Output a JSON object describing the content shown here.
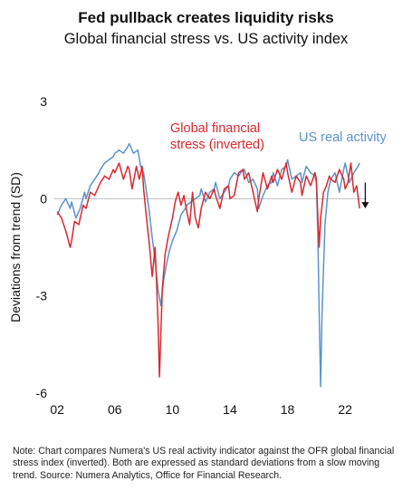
{
  "title": "Fed pullback creates liquidity risks",
  "subtitle": "Global financial stress vs. US activity index",
  "note": "Note: Chart compares Numera's US real activity indicator against the OFR global financial stress index (inverted). Both are expressed as standard deviations from a slow moving trend. Source: Numera Analytics, Office for Financial Research.",
  "colors": {
    "fsi": "#d9282f",
    "activity": "#5b93c9",
    "zero_line": "#bdbdbd",
    "text": "#111111"
  },
  "chart_data": {
    "type": "line",
    "ylabel": "Deviations from trend (SD)",
    "xlabel": "",
    "ylim": [
      -6,
      3
    ],
    "xlim": [
      2001.8,
      2023.5
    ],
    "yticks": [
      3,
      0,
      -3,
      -6
    ],
    "ytick_labels": [
      "3",
      "0",
      "-3",
      "-6"
    ],
    "xticks": [
      2002,
      2006,
      2010,
      2014,
      2018,
      2022
    ],
    "xtick_labels": [
      "02",
      "06",
      "10",
      "14",
      "18",
      "22"
    ],
    "grid": false,
    "zero_line": true,
    "annotation_arrow": {
      "x": 2023.4,
      "y_from": 0.5,
      "y_to": -0.3,
      "direction": "down"
    },
    "series": [
      {
        "name": "Global financial stress (inverted)",
        "label_lines": [
          "Global financial",
          "stress (inverted)"
        ],
        "x": [
          2002.0,
          2002.3,
          2002.6,
          2002.9,
          2003.0,
          2003.2,
          2003.5,
          2003.8,
          2004.0,
          2004.3,
          2004.6,
          2004.9,
          2005.0,
          2005.3,
          2005.6,
          2005.9,
          2006.0,
          2006.3,
          2006.6,
          2006.9,
          2007.0,
          2007.2,
          2007.5,
          2007.7,
          2007.9,
          2008.0,
          2008.2,
          2008.4,
          2008.6,
          2008.8,
          2008.9,
          2009.0,
          2009.1,
          2009.3,
          2009.5,
          2009.7,
          2009.9,
          2010.0,
          2010.2,
          2010.4,
          2010.6,
          2010.8,
          2011.0,
          2011.2,
          2011.4,
          2011.6,
          2011.8,
          2012.0,
          2012.3,
          2012.6,
          2012.9,
          2013.0,
          2013.3,
          2013.6,
          2013.9,
          2014.0,
          2014.3,
          2014.6,
          2014.9,
          2015.0,
          2015.3,
          2015.6,
          2015.9,
          2016.0,
          2016.3,
          2016.6,
          2016.9,
          2017.0,
          2017.3,
          2017.6,
          2017.9,
          2018.0,
          2018.3,
          2018.6,
          2018.9,
          2019.0,
          2019.3,
          2019.6,
          2019.9,
          2020.0,
          2020.1,
          2020.2,
          2020.3,
          2020.5,
          2020.7,
          2020.9,
          2021.0,
          2021.3,
          2021.6,
          2021.9,
          2022.0,
          2022.2,
          2022.4,
          2022.6,
          2022.8,
          2023.0
        ],
        "y": [
          -0.4,
          -0.6,
          -1.0,
          -1.5,
          -1.3,
          -0.7,
          -0.8,
          -0.2,
          -0.3,
          0.2,
          0.1,
          0.4,
          0.5,
          0.7,
          0.6,
          0.9,
          0.8,
          1.1,
          0.6,
          1.0,
          0.9,
          0.3,
          1.0,
          0.6,
          1.0,
          0.3,
          -0.6,
          -1.4,
          -2.4,
          -1.5,
          -2.6,
          -3.8,
          -5.5,
          -2.8,
          -1.7,
          -1.2,
          -0.8,
          -0.6,
          -0.1,
          0.2,
          -0.2,
          0.1,
          -0.4,
          -0.8,
          0.2,
          -0.6,
          -0.9,
          -0.3,
          0.2,
          0.0,
          0.3,
          0.1,
          -0.3,
          0.3,
          0.4,
          0.0,
          0.1,
          0.8,
          0.9,
          0.6,
          0.8,
          0.2,
          -0.4,
          0.0,
          0.8,
          0.3,
          0.7,
          0.5,
          0.9,
          0.6,
          1.1,
          0.8,
          0.2,
          0.7,
          0.5,
          0.1,
          0.7,
          0.4,
          0.8,
          0.6,
          -0.5,
          -1.5,
          -0.6,
          0.2,
          0.4,
          0.7,
          0.6,
          0.5,
          0.9,
          0.6,
          0.3,
          0.5,
          1.1,
          0.2,
          0.4,
          -0.3
        ]
      },
      {
        "name": "US real activity",
        "label_lines": [
          "US real activity"
        ],
        "x": [
          2002.0,
          2002.3,
          2002.6,
          2002.9,
          2003.0,
          2003.3,
          2003.6,
          2003.9,
          2004.0,
          2004.3,
          2004.6,
          2004.9,
          2005.0,
          2005.3,
          2005.6,
          2005.9,
          2006.0,
          2006.3,
          2006.6,
          2006.9,
          2007.0,
          2007.3,
          2007.6,
          2007.8,
          2008.0,
          2008.2,
          2008.4,
          2008.6,
          2008.8,
          2009.0,
          2009.2,
          2009.4,
          2009.6,
          2009.8,
          2010.0,
          2010.3,
          2010.6,
          2010.9,
          2011.0,
          2011.3,
          2011.6,
          2011.9,
          2012.0,
          2012.3,
          2012.6,
          2012.9,
          2013.0,
          2013.3,
          2013.6,
          2013.9,
          2014.0,
          2014.3,
          2014.6,
          2014.9,
          2015.0,
          2015.3,
          2015.6,
          2015.9,
          2016.0,
          2016.3,
          2016.6,
          2016.9,
          2017.0,
          2017.3,
          2017.6,
          2017.9,
          2018.0,
          2018.3,
          2018.6,
          2018.9,
          2019.0,
          2019.3,
          2019.6,
          2019.9,
          2020.0,
          2020.1,
          2020.2,
          2020.3,
          2020.4,
          2020.6,
          2020.8,
          2021.0,
          2021.3,
          2021.6,
          2021.9,
          2022.0,
          2022.3,
          2022.6,
          2022.9,
          2023.0
        ],
        "y": [
          -0.5,
          -0.2,
          0.0,
          -0.3,
          -0.1,
          -0.6,
          -0.3,
          0.2,
          0.0,
          0.4,
          0.6,
          0.8,
          0.9,
          1.1,
          1.2,
          1.3,
          1.4,
          1.5,
          1.4,
          1.6,
          1.7,
          1.4,
          1.5,
          1.0,
          0.8,
          0.2,
          -0.4,
          -1.2,
          -1.9,
          -2.8,
          -3.3,
          -2.5,
          -2.0,
          -1.6,
          -1.3,
          -1.0,
          -0.5,
          -0.3,
          -0.2,
          -0.1,
          0.0,
          0.1,
          0.3,
          -0.1,
          0.2,
          0.3,
          0.5,
          0.0,
          0.2,
          0.4,
          0.6,
          0.8,
          0.7,
          0.9,
          0.9,
          0.5,
          0.6,
          0.3,
          -0.3,
          0.1,
          0.4,
          0.5,
          0.8,
          0.4,
          0.9,
          1.0,
          1.2,
          0.6,
          0.7,
          0.8,
          0.5,
          1.0,
          0.8,
          0.7,
          0.5,
          -1.0,
          -3.5,
          -5.8,
          -3.5,
          -0.8,
          0.2,
          0.6,
          0.8,
          0.2,
          0.9,
          1.1,
          0.5,
          0.8,
          1.0,
          1.1
        ]
      }
    ]
  }
}
